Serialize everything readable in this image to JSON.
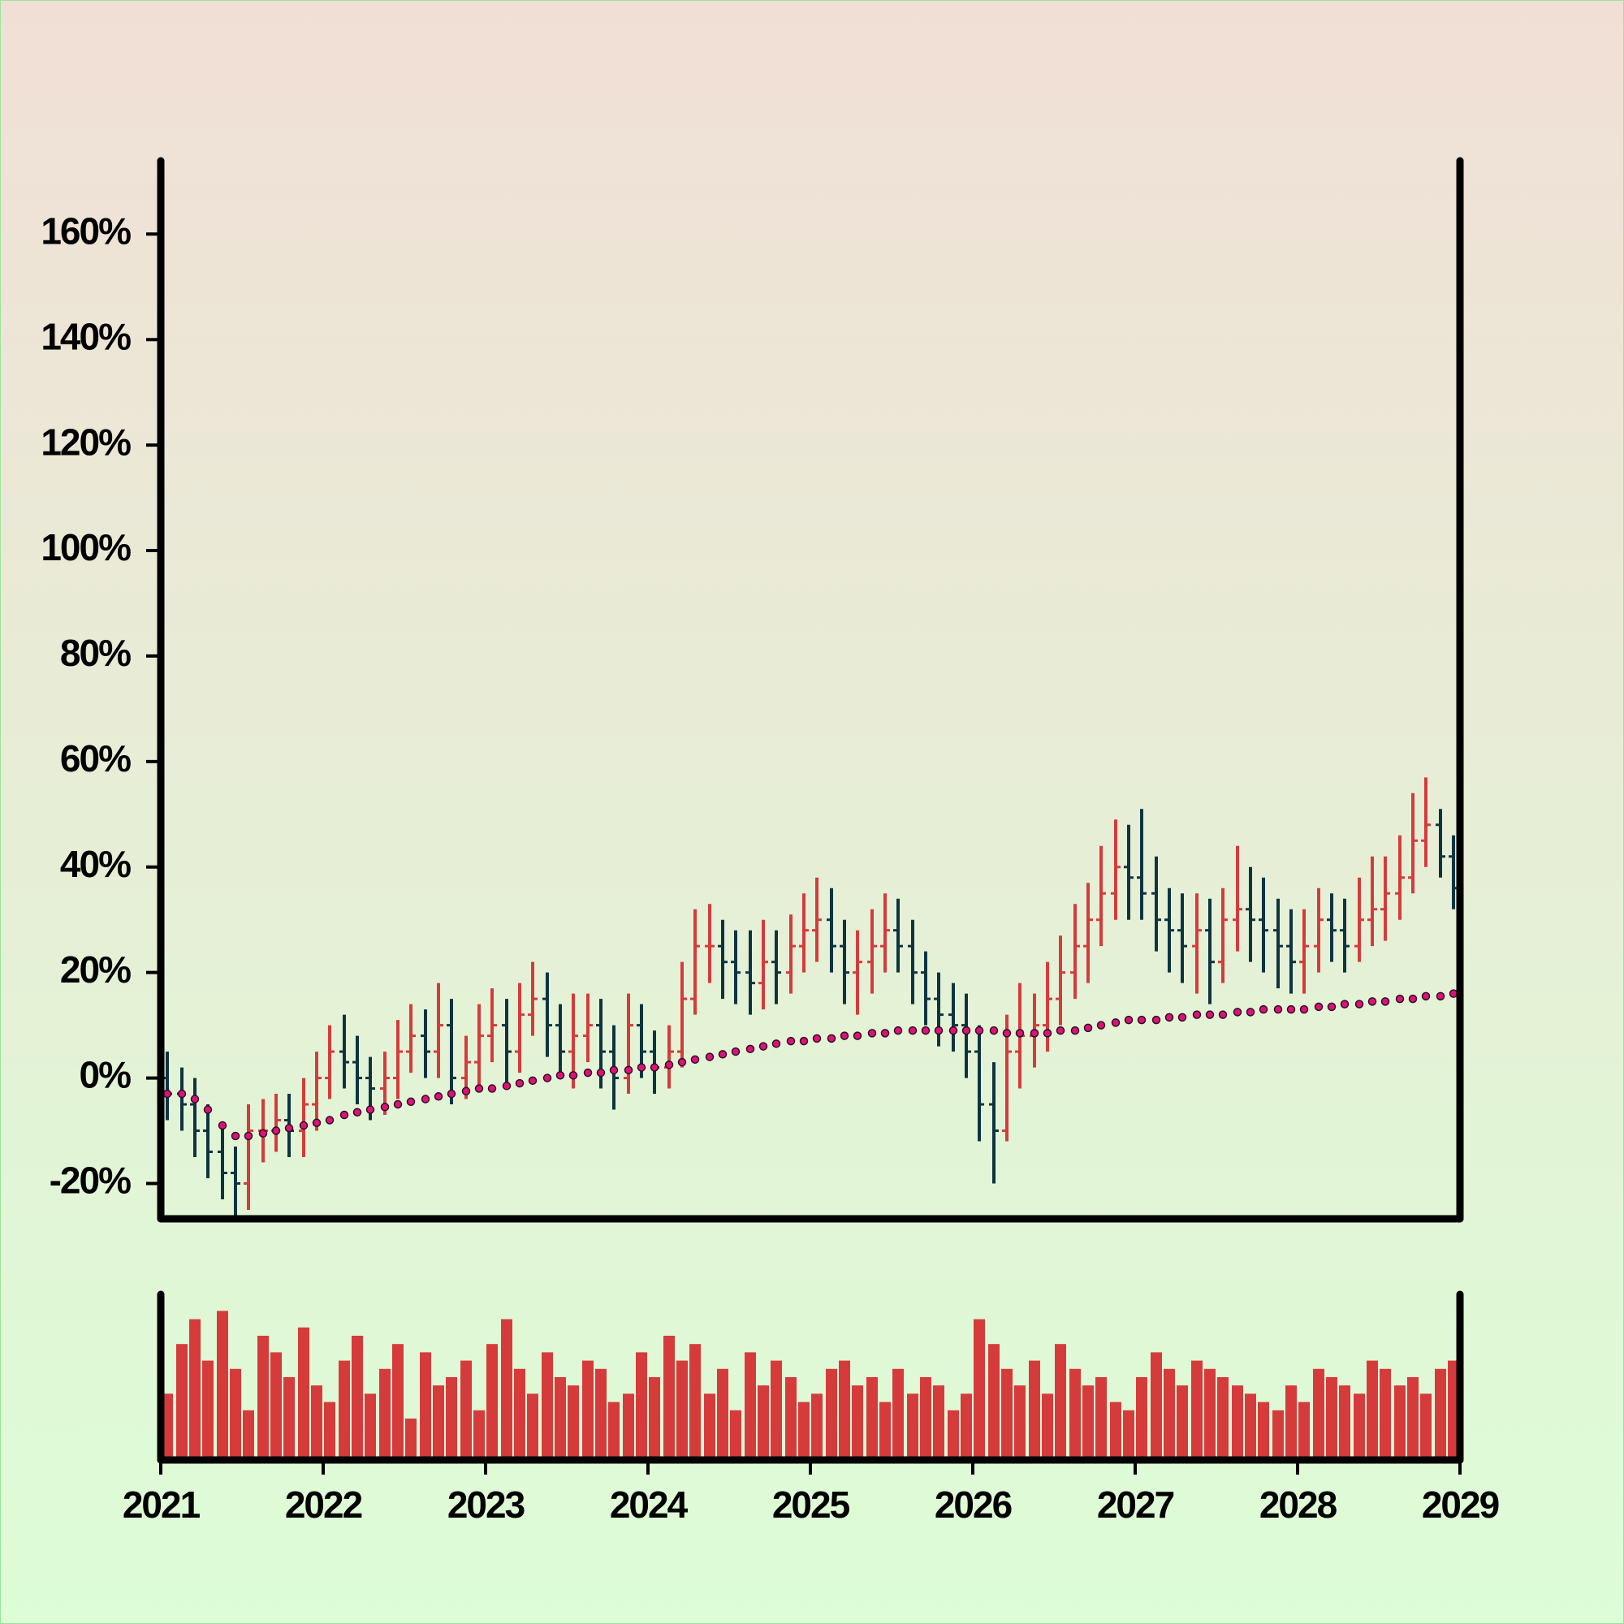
{
  "chart_data": {
    "type": "ohlc",
    "xlim": [
      2021,
      2029
    ],
    "xticks": [
      2021,
      2022,
      2023,
      2024,
      2025,
      2026,
      2027,
      2028,
      2029
    ],
    "ylim": [
      -26.7,
      173.9
    ],
    "yticks": [
      {
        "value": -20,
        "label": "-20%"
      },
      {
        "value": 0,
        "label": "0%"
      },
      {
        "value": 20,
        "label": "20%"
      },
      {
        "value": 40,
        "label": "40%"
      },
      {
        "value": 60,
        "label": "60%"
      },
      {
        "value": 80,
        "label": "80%"
      },
      {
        "value": 100,
        "label": "100%"
      },
      {
        "value": 120,
        "label": "120%"
      },
      {
        "value": 140,
        "label": "140%"
      },
      {
        "value": 160,
        "label": "160%"
      }
    ],
    "up_color": "#d63b3b",
    "down_color": "#0e3440",
    "x": [
      2021.04,
      2021.13,
      2021.21,
      2021.29,
      2021.38,
      2021.46,
      2021.54,
      2021.63,
      2021.71,
      2021.79,
      2021.88,
      2021.96,
      2022.04,
      2022.13,
      2022.21,
      2022.29,
      2022.38,
      2022.46,
      2022.54,
      2022.63,
      2022.71,
      2022.79,
      2022.88,
      2022.96,
      2023.04,
      2023.13,
      2023.21,
      2023.29,
      2023.38,
      2023.46,
      2023.54,
      2023.63,
      2023.71,
      2023.79,
      2023.88,
      2023.96,
      2024.04,
      2024.13,
      2024.21,
      2024.29,
      2024.38,
      2024.46,
      2024.54,
      2024.63,
      2024.71,
      2024.79,
      2024.88,
      2024.96,
      2025.04,
      2025.13,
      2025.21,
      2025.29,
      2025.38,
      2025.46,
      2025.54,
      2025.63,
      2025.71,
      2025.79,
      2025.88,
      2025.96,
      2026.04,
      2026.13,
      2026.21,
      2026.29,
      2026.38,
      2026.46,
      2026.54,
      2026.63,
      2026.71,
      2026.79,
      2026.88,
      2026.96,
      2027.04,
      2027.13,
      2027.21,
      2027.29,
      2027.38,
      2027.46,
      2027.54,
      2027.63,
      2027.71,
      2027.79,
      2027.88,
      2027.96,
      2028.04,
      2028.13,
      2028.21,
      2028.29,
      2028.38,
      2028.46,
      2028.54,
      2028.63,
      2028.71,
      2028.79,
      2028.88,
      2028.96
    ],
    "open": [
      0,
      -3,
      -5,
      -10,
      -14,
      -18,
      -20,
      -10,
      -10,
      -8,
      -10,
      -5,
      0,
      5,
      3,
      0,
      -2,
      0,
      5,
      8,
      5,
      10,
      0,
      3,
      8,
      10,
      5,
      12,
      15,
      10,
      5,
      8,
      10,
      5,
      0,
      10,
      5,
      2,
      5,
      15,
      25,
      25,
      22,
      20,
      18,
      22,
      20,
      25,
      28,
      30,
      25,
      20,
      22,
      25,
      28,
      25,
      20,
      15,
      12,
      10,
      5,
      -5,
      -10,
      5,
      8,
      10,
      15,
      20,
      25,
      30,
      35,
      40,
      38,
      35,
      30,
      28,
      25,
      28,
      22,
      30,
      32,
      30,
      28,
      25,
      22,
      25,
      30,
      28,
      25,
      30,
      32,
      35,
      38,
      45,
      48,
      42
    ],
    "high": [
      5,
      2,
      0,
      -5,
      -9,
      -13,
      -5,
      -4,
      -3,
      -3,
      0,
      5,
      10,
      12,
      8,
      4,
      5,
      11,
      14,
      13,
      18,
      15,
      8,
      14,
      17,
      15,
      18,
      22,
      20,
      14,
      16,
      16,
      15,
      10,
      16,
      14,
      9,
      10,
      22,
      32,
      33,
      30,
      28,
      28,
      30,
      28,
      31,
      35,
      38,
      36,
      30,
      28,
      32,
      35,
      34,
      30,
      24,
      20,
      18,
      16,
      10,
      3,
      12,
      18,
      16,
      22,
      27,
      33,
      37,
      44,
      49,
      48,
      51,
      42,
      36,
      35,
      35,
      34,
      36,
      44,
      40,
      38,
      34,
      32,
      32,
      36,
      35,
      34,
      38,
      42,
      42,
      46,
      54,
      57,
      51,
      46
    ],
    "low": [
      -8,
      -10,
      -15,
      -19,
      -23,
      -26,
      -25,
      -16,
      -14,
      -15,
      -15,
      -10,
      -4,
      -2,
      -5,
      -8,
      -7,
      -4,
      1,
      0,
      0,
      -5,
      -4,
      -2,
      3,
      -1,
      1,
      8,
      4,
      0,
      -2,
      3,
      -2,
      -6,
      -3,
      0,
      -3,
      -2,
      2,
      12,
      18,
      15,
      14,
      12,
      13,
      14,
      16,
      20,
      22,
      20,
      14,
      12,
      16,
      20,
      20,
      14,
      10,
      6,
      5,
      0,
      -12,
      -20,
      -12,
      -2,
      2,
      5,
      10,
      15,
      18,
      25,
      30,
      30,
      30,
      24,
      20,
      18,
      16,
      14,
      18,
      24,
      22,
      20,
      17,
      16,
      16,
      20,
      22,
      20,
      22,
      25,
      26,
      30,
      35,
      40,
      38,
      32
    ],
    "close": [
      -3,
      -5,
      -10,
      -14,
      -18,
      -20,
      -10,
      -10,
      -8,
      -10,
      -5,
      0,
      5,
      3,
      0,
      -2,
      0,
      5,
      8,
      5,
      10,
      0,
      3,
      8,
      10,
      5,
      12,
      15,
      10,
      5,
      8,
      10,
      5,
      0,
      10,
      5,
      2,
      5,
      15,
      25,
      25,
      22,
      20,
      18,
      22,
      20,
      25,
      28,
      30,
      25,
      20,
      22,
      25,
      28,
      25,
      20,
      15,
      12,
      10,
      5,
      -5,
      -10,
      5,
      8,
      10,
      15,
      20,
      25,
      30,
      35,
      40,
      38,
      35,
      30,
      28,
      25,
      28,
      22,
      30,
      32,
      30,
      28,
      25,
      22,
      25,
      30,
      28,
      25,
      30,
      32,
      35,
      38,
      45,
      48,
      42,
      36
    ],
    "moving_average": {
      "color": "#e0107a",
      "values": [
        -3,
        -3,
        -4,
        -6,
        -9,
        -11,
        -11,
        -10.5,
        -10,
        -9.5,
        -9,
        -8.5,
        -8,
        -7,
        -6.5,
        -6,
        -5.5,
        -5,
        -4.5,
        -4,
        -3.5,
        -3,
        -2.5,
        -2,
        -2,
        -1.5,
        -1,
        -0.5,
        0,
        0.5,
        0.5,
        1,
        1,
        1.5,
        1.5,
        2,
        2,
        2.5,
        3,
        3.5,
        4,
        4.5,
        5,
        5.5,
        6,
        6.5,
        7,
        7,
        7.5,
        7.5,
        8,
        8,
        8.5,
        8.5,
        9,
        9,
        9,
        9,
        9,
        9,
        9,
        9,
        8.5,
        8.5,
        8.5,
        8.5,
        9,
        9,
        9.5,
        10,
        10.5,
        11,
        11,
        11,
        11.5,
        11.5,
        12,
        12,
        12,
        12.5,
        12.5,
        13,
        13,
        13,
        13,
        13.5,
        13.5,
        14,
        14,
        14.5,
        14.5,
        15,
        15,
        15.5,
        15.5,
        16
      ]
    },
    "volume": {
      "color": "#d63b3b",
      "ylim": [
        0,
        100
      ],
      "values": [
        40,
        70,
        85,
        60,
        90,
        55,
        30,
        75,
        65,
        50,
        80,
        45,
        35,
        60,
        75,
        40,
        55,
        70,
        25,
        65,
        45,
        50,
        60,
        30,
        70,
        85,
        55,
        40,
        65,
        50,
        45,
        60,
        55,
        35,
        40,
        65,
        50,
        75,
        60,
        70,
        40,
        55,
        30,
        65,
        45,
        60,
        50,
        35,
        40,
        55,
        60,
        45,
        50,
        35,
        55,
        40,
        50,
        45,
        30,
        40,
        85,
        70,
        55,
        45,
        60,
        40,
        70,
        55,
        45,
        50,
        35,
        30,
        50,
        65,
        55,
        45,
        60,
        55,
        50,
        45,
        40,
        35,
        30,
        45,
        35,
        55,
        50,
        45,
        40,
        60,
        55,
        45,
        50,
        40,
        55,
        60
      ]
    }
  }
}
